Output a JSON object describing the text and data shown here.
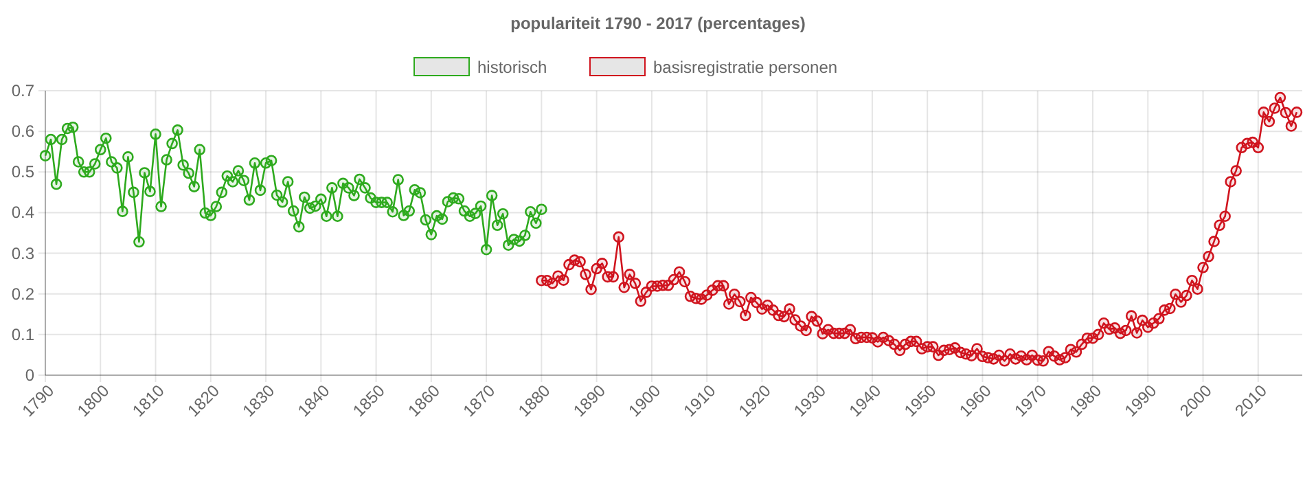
{
  "chart_data": {
    "type": "line",
    "title": "populariteit 1790 - 2017 (percentages)",
    "legend": "top",
    "grid": true,
    "marker": "circle",
    "line_style": "solid",
    "xlim": [
      1790,
      2018
    ],
    "xticks": [
      1790,
      1800,
      1810,
      1820,
      1830,
      1840,
      1850,
      1860,
      1870,
      1880,
      1890,
      1900,
      1910,
      1920,
      1930,
      1940,
      1950,
      1960,
      1970,
      1980,
      1990,
      2000,
      2010
    ],
    "ylim": [
      0,
      0.7
    ],
    "yticks": [
      {
        "value": 0,
        "label": "0"
      },
      {
        "value": 0.1,
        "label": "0.1"
      },
      {
        "value": 0.2,
        "label": "0.2"
      },
      {
        "value": 0.3,
        "label": "0.3"
      },
      {
        "value": 0.4,
        "label": "0.4"
      },
      {
        "value": 0.5,
        "label": "0.5"
      },
      {
        "value": 0.6,
        "label": "0.6"
      },
      {
        "value": 0.7,
        "label": "0.7"
      }
    ],
    "series": [
      {
        "name": "historisch",
        "color": "#2eaa1e",
        "x": [
          1790,
          1791,
          1792,
          1793,
          1794,
          1795,
          1796,
          1797,
          1798,
          1799,
          1800,
          1801,
          1802,
          1803,
          1804,
          1805,
          1806,
          1807,
          1808,
          1809,
          1810,
          1811,
          1812,
          1813,
          1814,
          1815,
          1816,
          1817,
          1818,
          1819,
          1820,
          1821,
          1822,
          1823,
          1824,
          1825,
          1826,
          1827,
          1828,
          1829,
          1830,
          1831,
          1832,
          1833,
          1834,
          1835,
          1836,
          1837,
          1838,
          1839,
          1840,
          1841,
          1842,
          1843,
          1844,
          1845,
          1846,
          1847,
          1848,
          1849,
          1850,
          1851,
          1852,
          1853,
          1854,
          1855,
          1856,
          1857,
          1858,
          1859,
          1860,
          1861,
          1862,
          1863,
          1864,
          1865,
          1866,
          1867,
          1868,
          1869,
          1870,
          1871,
          1872,
          1873,
          1874,
          1875,
          1876,
          1877,
          1878,
          1879,
          1880
        ],
        "values": [
          0.54,
          0.58,
          0.47,
          0.58,
          0.607,
          0.61,
          0.525,
          0.5,
          0.5,
          0.52,
          0.555,
          0.583,
          0.525,
          0.51,
          0.403,
          0.537,
          0.45,
          0.328,
          0.498,
          0.452,
          0.593,
          0.415,
          0.53,
          0.57,
          0.603,
          0.517,
          0.497,
          0.464,
          0.555,
          0.399,
          0.393,
          0.415,
          0.45,
          0.49,
          0.476,
          0.503,
          0.479,
          0.431,
          0.522,
          0.455,
          0.522,
          0.528,
          0.443,
          0.426,
          0.476,
          0.404,
          0.365,
          0.438,
          0.411,
          0.416,
          0.433,
          0.391,
          0.461,
          0.391,
          0.472,
          0.461,
          0.442,
          0.482,
          0.461,
          0.436,
          0.425,
          0.425,
          0.425,
          0.402,
          0.481,
          0.393,
          0.404,
          0.456,
          0.449,
          0.382,
          0.346,
          0.392,
          0.384,
          0.427,
          0.436,
          0.434,
          0.404,
          0.391,
          0.398,
          0.416,
          0.309,
          0.442,
          0.369,
          0.397,
          0.32,
          0.334,
          0.33,
          0.344,
          0.402,
          0.374,
          0.408
        ]
      },
      {
        "name": "basisregistratie personen",
        "color": "#d0141e",
        "x": [
          1880,
          1881,
          1882,
          1883,
          1884,
          1885,
          1886,
          1887,
          1888,
          1889,
          1890,
          1891,
          1892,
          1893,
          1894,
          1895,
          1896,
          1897,
          1898,
          1899,
          1900,
          1901,
          1902,
          1903,
          1904,
          1905,
          1906,
          1907,
          1908,
          1909,
          1910,
          1911,
          1912,
          1913,
          1914,
          1915,
          1916,
          1917,
          1918,
          1919,
          1920,
          1921,
          1922,
          1923,
          1924,
          1925,
          1926,
          1927,
          1928,
          1929,
          1930,
          1931,
          1932,
          1933,
          1934,
          1935,
          1936,
          1937,
          1938,
          1939,
          1940,
          1941,
          1942,
          1943,
          1944,
          1945,
          1946,
          1947,
          1948,
          1949,
          1950,
          1951,
          1952,
          1953,
          1954,
          1955,
          1956,
          1957,
          1958,
          1959,
          1960,
          1961,
          1962,
          1963,
          1964,
          1965,
          1966,
          1967,
          1968,
          1969,
          1970,
          1971,
          1972,
          1973,
          1974,
          1975,
          1976,
          1977,
          1978,
          1979,
          1980,
          1981,
          1982,
          1983,
          1984,
          1985,
          1986,
          1987,
          1988,
          1989,
          1990,
          1991,
          1992,
          1993,
          1994,
          1995,
          1996,
          1997,
          1998,
          1999,
          2000,
          2001,
          2002,
          2003,
          2004,
          2005,
          2006,
          2007,
          2008,
          2009,
          2010,
          2011,
          2012,
          2013,
          2014,
          2015,
          2016,
          2017
        ],
        "values": [
          0.233,
          0.233,
          0.226,
          0.244,
          0.234,
          0.272,
          0.283,
          0.279,
          0.248,
          0.211,
          0.262,
          0.275,
          0.242,
          0.242,
          0.34,
          0.216,
          0.248,
          0.226,
          0.182,
          0.204,
          0.219,
          0.219,
          0.221,
          0.221,
          0.235,
          0.254,
          0.23,
          0.194,
          0.189,
          0.187,
          0.197,
          0.209,
          0.22,
          0.22,
          0.175,
          0.199,
          0.181,
          0.147,
          0.191,
          0.179,
          0.163,
          0.172,
          0.16,
          0.147,
          0.144,
          0.163,
          0.136,
          0.121,
          0.11,
          0.144,
          0.133,
          0.102,
          0.112,
          0.103,
          0.103,
          0.103,
          0.112,
          0.09,
          0.093,
          0.093,
          0.092,
          0.082,
          0.093,
          0.085,
          0.076,
          0.061,
          0.076,
          0.083,
          0.083,
          0.065,
          0.07,
          0.07,
          0.049,
          0.061,
          0.063,
          0.067,
          0.056,
          0.052,
          0.048,
          0.065,
          0.046,
          0.043,
          0.04,
          0.049,
          0.035,
          0.052,
          0.04,
          0.047,
          0.038,
          0.049,
          0.037,
          0.035,
          0.058,
          0.047,
          0.038,
          0.043,
          0.063,
          0.057,
          0.076,
          0.091,
          0.091,
          0.1,
          0.128,
          0.113,
          0.116,
          0.103,
          0.11,
          0.146,
          0.104,
          0.135,
          0.118,
          0.128,
          0.139,
          0.16,
          0.164,
          0.199,
          0.18,
          0.196,
          0.233,
          0.212,
          0.265,
          0.292,
          0.329,
          0.369,
          0.391,
          0.476,
          0.503,
          0.56,
          0.57,
          0.573,
          0.56,
          0.647,
          0.624,
          0.657,
          0.683,
          0.646,
          0.613,
          0.647
        ]
      }
    ]
  }
}
